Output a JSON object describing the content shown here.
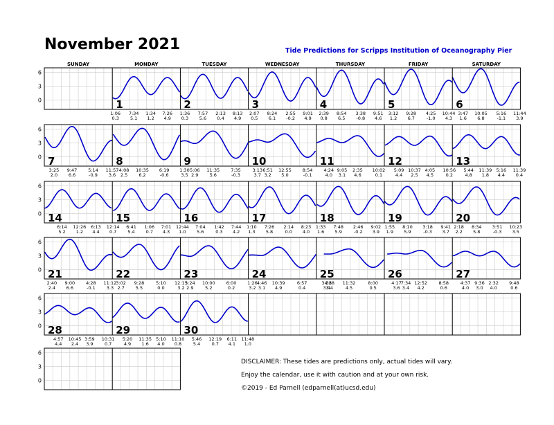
{
  "title": "November 2021",
  "subtitle": "Tide Predictions for Scripps Institution of Oceanography Pier",
  "weekdays": [
    "SUNDAY",
    "MONDAY",
    "TUESDAY",
    "WEDNESDAY",
    "THURSDAY",
    "FRIDAY",
    "SATURDAY"
  ],
  "disclaimer": [
    "DISCLAIMER: These tides are predictions only, actual tides will vary.",
    "Enjoy the calendar, use it with caution and at your own risk.",
    "©2019 - Ed Parnell (edparnell(at)ucsd.edu)"
  ],
  "colors": {
    "tide_line": "#0000cc",
    "grid": "#cccccc",
    "border": "#000000",
    "subtitle": "#0000cc"
  },
  "chart_data": {
    "type": "line",
    "series_name": "tide height",
    "y_ticks": [
      0,
      3,
      6
    ],
    "ylim": [
      -2,
      7
    ],
    "xlim_hours": [
      0,
      24
    ],
    "grid": true,
    "weeks": [
      {
        "days": [
          null,
          {
            "date": "1",
            "extremes": [
              [
                "1:06",
                0.3
              ],
              [
                "7:34",
                5.1
              ],
              [
                "1:34",
                1.2
              ],
              [
                "7:26",
                4.9
              ]
            ]
          },
          {
            "date": "2",
            "extremes": [
              [
                "1:36",
                0.3
              ],
              [
                "7:57",
                5.6
              ],
              [
                "2:13",
                0.4
              ],
              [
                "8:13",
                4.9
              ]
            ]
          },
          {
            "date": "3",
            "extremes": [
              [
                "2:07",
                0.5
              ],
              [
                "8:24",
                6.1
              ],
              [
                "2:55",
                -0.2
              ],
              [
                "9:01",
                4.9
              ]
            ]
          },
          {
            "date": "4",
            "extremes": [
              [
                "2:39",
                0.8
              ],
              [
                "8:54",
                6.5
              ],
              [
                "3:38",
                -0.8
              ],
              [
                "9:51",
                4.6
              ]
            ]
          },
          {
            "date": "5",
            "extremes": [
              [
                "3:12",
                1.2
              ],
              [
                "9:28",
                6.7
              ],
              [
                "4:25",
                -1.0
              ],
              [
                "10:44",
                4.3
              ]
            ]
          },
          {
            "date": "6",
            "extremes": [
              [
                "3:47",
                1.6
              ],
              [
                "10:05",
                6.8
              ],
              [
                "5:16",
                -1.1
              ],
              [
                "11:44",
                3.9
              ]
            ]
          }
        ]
      },
      {
        "days": [
          {
            "date": "7",
            "extremes": [
              [
                "3:25",
                2.0
              ],
              [
                "9:47",
                6.6
              ],
              [
                "5:14",
                -0.9
              ],
              [
                "11:57",
                3.6
              ]
            ]
          },
          {
            "date": "8",
            "extremes": [
              [
                "4:08",
                2.5
              ],
              [
                "10:35",
                6.2
              ],
              [
                "6:19",
                -0.6
              ]
            ]
          },
          {
            "date": "9",
            "extremes": [
              [
                "1:30",
                3.5
              ],
              [
                "5:06",
                2.9
              ],
              [
                "11:35",
                5.6
              ],
              [
                "7:35",
                -0.3
              ]
            ]
          },
          {
            "date": "10",
            "extremes": [
              [
                "3:13",
                3.7
              ],
              [
                "6:51",
                3.2
              ],
              [
                "12:55",
                5.0
              ],
              [
                "8:54",
                -0.1
              ]
            ]
          },
          {
            "date": "11",
            "extremes": [
              [
                "4:24",
                4.0
              ],
              [
                "9:05",
                3.1
              ],
              [
                "2:35",
                4.6
              ],
              [
                "10:02",
                0.1
              ]
            ]
          },
          {
            "date": "12",
            "extremes": [
              [
                "5:09",
                4.4
              ],
              [
                "10:37",
                2.5
              ],
              [
                "4:05",
                4.5
              ],
              [
                "10:56",
                0.2
              ]
            ]
          },
          {
            "date": "13",
            "extremes": [
              [
                "5:44",
                4.8
              ],
              [
                "11:39",
                1.8
              ],
              [
                "5:16",
                4.4
              ],
              [
                "11:39",
                0.4
              ]
            ]
          }
        ]
      },
      {
        "days": [
          {
            "date": "14",
            "extremes": [
              [
                "6:14",
                5.2
              ],
              [
                "12:26",
                1.2
              ],
              [
                "6:13",
                4.4
              ]
            ]
          },
          {
            "date": "15",
            "extremes": [
              [
                "12:14",
                0.7
              ],
              [
                "6:41",
                5.4
              ],
              [
                "1:06",
                0.7
              ],
              [
                "7:01",
                4.3
              ]
            ]
          },
          {
            "date": "16",
            "extremes": [
              [
                "12:44",
                1.0
              ],
              [
                "7:04",
                5.6
              ],
              [
                "1:42",
                0.3
              ],
              [
                "7:44",
                4.2
              ]
            ]
          },
          {
            "date": "17",
            "extremes": [
              [
                "1:10",
                1.3
              ],
              [
                "7:26",
                5.8
              ],
              [
                "2:14",
                -0.0
              ],
              [
                "8:23",
                4.0
              ]
            ]
          },
          {
            "date": "18",
            "extremes": [
              [
                "1:33",
                1.6
              ],
              [
                "7:48",
                5.9
              ],
              [
                "2:46",
                -0.2
              ],
              [
                "9:02",
                3.9
              ]
            ]
          },
          {
            "date": "19",
            "extremes": [
              [
                "1:55",
                1.9
              ],
              [
                "8:10",
                5.9
              ],
              [
                "3:18",
                -0.3
              ],
              [
                "9:41",
                3.7
              ]
            ]
          },
          {
            "date": "20",
            "extremes": [
              [
                "2:18",
                2.2
              ],
              [
                "8:34",
                5.8
              ],
              [
                "3:51",
                -0.3
              ],
              [
                "10:23",
                3.5
              ]
            ]
          }
        ]
      },
      {
        "days": [
          {
            "date": "21",
            "extremes": [
              [
                "2:40",
                2.4
              ],
              [
                "9:00",
                6.6
              ],
              [
                "4:28",
                -0.1
              ],
              [
                "11:12",
                3.3
              ]
            ]
          },
          {
            "date": "22",
            "extremes": [
              [
                "3:02",
                2.7
              ],
              [
                "9:28",
                5.5
              ],
              [
                "5:10",
                0.0
              ]
            ]
          },
          {
            "date": "23",
            "extremes": [
              [
                "12:15",
                3.2
              ],
              [
                "3:24",
                2.9
              ],
              [
                "10:00",
                5.2
              ],
              [
                "6:00",
                0.2
              ]
            ]
          },
          {
            "date": "24",
            "extremes": [
              [
                "1:26",
                3.2
              ],
              [
                "4:46",
                3.1
              ],
              [
                "10:39",
                4.9
              ],
              [
                "6:57",
                0.4
              ]
            ]
          },
          {
            "date": "25",
            "extremes": [
              [
                "3:38",
                3.4
              ],
              [
                "4:38",
                3.4
              ],
              [
                "11:32",
                4.5
              ],
              [
                "8:00",
                0.5
              ]
            ]
          },
          {
            "date": "26",
            "extremes": [
              [
                "4:17",
                3.6
              ],
              [
                "7:34",
                3.4
              ],
              [
                "12:52",
                4.2
              ],
              [
                "8:58",
                0.6
              ]
            ]
          },
          {
            "date": "27",
            "extremes": [
              [
                "4:37",
                4.0
              ],
              [
                "9:36",
                3.0
              ],
              [
                "2:32",
                4.0
              ],
              [
                "9:48",
                0.6
              ]
            ]
          }
        ]
      },
      {
        "days": [
          {
            "date": "28",
            "extremes": [
              [
                "4:57",
                4.4
              ],
              [
                "10:45",
                2.4
              ],
              [
                "3:59",
                3.9
              ],
              [
                "10:31",
                0.7
              ]
            ]
          },
          {
            "date": "29",
            "extremes": [
              [
                "5:20",
                4.9
              ],
              [
                "11:35",
                1.6
              ],
              [
                "5:10",
                4.0
              ],
              [
                "11:10",
                0.8
              ]
            ]
          },
          {
            "date": "30",
            "extremes": [
              [
                "5:46",
                5.4
              ],
              [
                "12:19",
                0.7
              ],
              [
                "6:11",
                4.1
              ],
              [
                "11:48",
                1.0
              ]
            ]
          },
          null,
          null,
          null,
          null
        ]
      },
      {
        "days": [
          null,
          null
        ]
      }
    ]
  }
}
